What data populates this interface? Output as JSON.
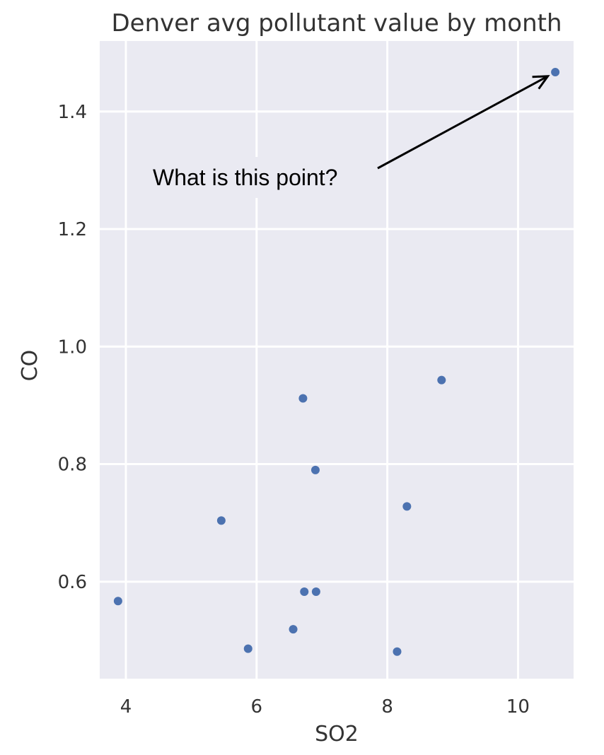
{
  "chart_data": {
    "type": "scatter",
    "title": "Denver avg pollutant value by month",
    "xlabel": "SO2",
    "ylabel": "CO",
    "xlim": [
      3.6,
      10.85
    ],
    "ylim": [
      0.435,
      1.52
    ],
    "xticks": [
      4,
      6,
      8,
      10
    ],
    "xtick_labels": [
      "4",
      "6",
      "8",
      "10"
    ],
    "yticks": [
      0.6,
      0.8,
      1.0,
      1.2,
      1.4
    ],
    "ytick_labels": [
      "0.6",
      "0.8",
      "1.0",
      "1.2",
      "1.4"
    ],
    "grid": true,
    "series": [
      {
        "points": [
          {
            "x": 3.88,
            "y": 0.567
          },
          {
            "x": 5.46,
            "y": 0.704
          },
          {
            "x": 5.87,
            "y": 0.486
          },
          {
            "x": 6.56,
            "y": 0.519
          },
          {
            "x": 6.71,
            "y": 0.912
          },
          {
            "x": 6.73,
            "y": 0.583
          },
          {
            "x": 6.9,
            "y": 0.79
          },
          {
            "x": 6.91,
            "y": 0.583
          },
          {
            "x": 8.15,
            "y": 0.481
          },
          {
            "x": 8.3,
            "y": 0.728
          },
          {
            "x": 8.83,
            "y": 0.943
          },
          {
            "x": 10.57,
            "y": 1.467
          }
        ]
      }
    ],
    "annotation": {
      "text": "What is this point?",
      "target": {
        "x": 10.57,
        "y": 1.467
      }
    }
  },
  "colors": {
    "background": "#ffffff",
    "plot_background": "#eaeaf2",
    "grid": "#ffffff",
    "marker": "#4c72b0",
    "text": "#333333",
    "annotation": "#000000"
  }
}
